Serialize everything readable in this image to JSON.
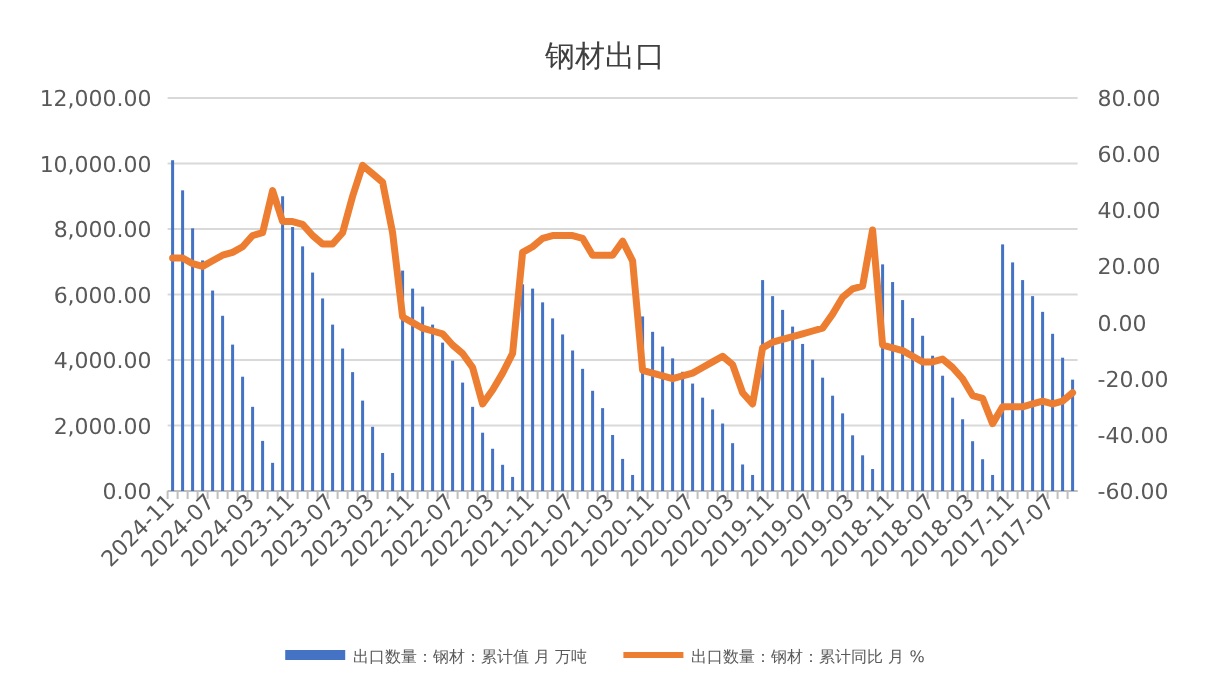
{
  "chart_data": {
    "type": "bar",
    "title": "钢材出口",
    "categories": [
      "2024-11",
      null,
      null,
      null,
      "2024-07",
      null,
      null,
      null,
      "2024-03",
      null,
      null,
      null,
      "2023-11",
      null,
      null,
      null,
      "2023-07",
      null,
      null,
      null,
      "2023-03",
      null,
      null,
      null,
      "2022-11",
      null,
      null,
      null,
      "2022-07",
      null,
      null,
      null,
      "2022-03",
      null,
      null,
      null,
      "2021-11",
      null,
      null,
      null,
      "2021-07",
      null,
      null,
      null,
      "2021-03",
      null,
      null,
      null,
      "2020-11",
      null,
      null,
      null,
      "2020-07",
      null,
      null,
      null,
      "2020-03",
      null,
      null,
      null,
      "2019-11",
      null,
      null,
      null,
      "2019-07",
      null,
      null,
      null,
      "2019-03",
      null,
      null,
      null,
      "2018-11",
      null,
      null,
      null,
      "2018-07",
      null,
      null,
      null,
      "2018-03",
      null,
      null,
      null,
      "2017-11",
      null,
      null,
      null,
      "2017-07",
      null,
      null
    ],
    "series": [
      {
        "name": "出口数量：钢材：累计值 月 万吨",
        "color": "#4472c4",
        "values": [
          10100,
          9180,
          8020,
          7040,
          6120,
          5350,
          4470,
          3490,
          2570,
          1530,
          860,
          9000,
          8060,
          7470,
          6670,
          5880,
          5080,
          4350,
          3630,
          2760,
          1960,
          1160,
          550,
          6730,
          6180,
          5630,
          5080,
          4530,
          3980,
          3310,
          2570,
          1780,
          1290,
          800,
          430,
          6310,
          6180,
          5760,
          5270,
          4780,
          4290,
          3730,
          3060,
          2530,
          1710,
          980,
          490,
          5330,
          4860,
          4410,
          4050,
          3640,
          3280,
          2850,
          2490,
          2060,
          1460,
          810,
          490,
          6440,
          5950,
          5530,
          5020,
          4490,
          4010,
          3460,
          2910,
          2370,
          1700,
          1090,
          670,
          6920,
          6380,
          5830,
          5280,
          4740,
          4130,
          3520,
          2850,
          2190,
          1520,
          970,
          490,
          7530,
          6980,
          6440,
          5950,
          5470,
          4800,
          4070,
          3400
        ]
      },
      {
        "name": "出口数量：钢材：累计同比 月 %",
        "type": "line",
        "axis": "y2",
        "color": "#ed7d31",
        "values": [
          23,
          23,
          21,
          20,
          22,
          24,
          25,
          27,
          31,
          32,
          47,
          36,
          36,
          35,
          31,
          28,
          28,
          32,
          45,
          56,
          53,
          50,
          32,
          2,
          0,
          -2,
          -3,
          -4,
          -8,
          -11,
          -16,
          -29,
          -24,
          -18,
          -11,
          25,
          27,
          30,
          31,
          31,
          31,
          30,
          24,
          24,
          24,
          29,
          22,
          -17,
          -18,
          -19,
          -20,
          -19,
          -18,
          -16,
          -14,
          -12,
          -15,
          -25,
          -29,
          -9,
          -7,
          -6,
          -5,
          -4,
          -3,
          -2,
          3,
          9,
          12,
          13,
          33,
          -8,
          -9,
          -10,
          -12,
          -14,
          -14,
          -13,
          -16,
          -20,
          -26,
          -27,
          -36,
          -30,
          -30,
          -30,
          -29,
          -28,
          -29,
          -28,
          -25
        ]
      }
    ],
    "ylim": [
      0,
      12000
    ],
    "yticks": [
      {
        "value": 0,
        "label": "0.00"
      },
      {
        "value": 2000,
        "label": "2,000.00"
      },
      {
        "value": 4000,
        "label": "4,000.00"
      },
      {
        "value": 6000,
        "label": "6,000.00"
      },
      {
        "value": 8000,
        "label": "8,000.00"
      },
      {
        "value": 10000,
        "label": "10,000.00"
      },
      {
        "value": 12000,
        "label": "12,000.00"
      }
    ],
    "y2lim": [
      -60,
      80
    ],
    "y2ticks": [
      {
        "value": -60,
        "label": "-60.00"
      },
      {
        "value": -40,
        "label": "-40.00"
      },
      {
        "value": -20,
        "label": "-20.00"
      },
      {
        "value": 0,
        "label": "0.00"
      },
      {
        "value": 20,
        "label": "20.00"
      },
      {
        "value": 40,
        "label": "40.00"
      },
      {
        "value": 60,
        "label": "60.00"
      },
      {
        "value": 80,
        "label": "80.00"
      }
    ],
    "grid": "y",
    "legend": "bottom"
  }
}
